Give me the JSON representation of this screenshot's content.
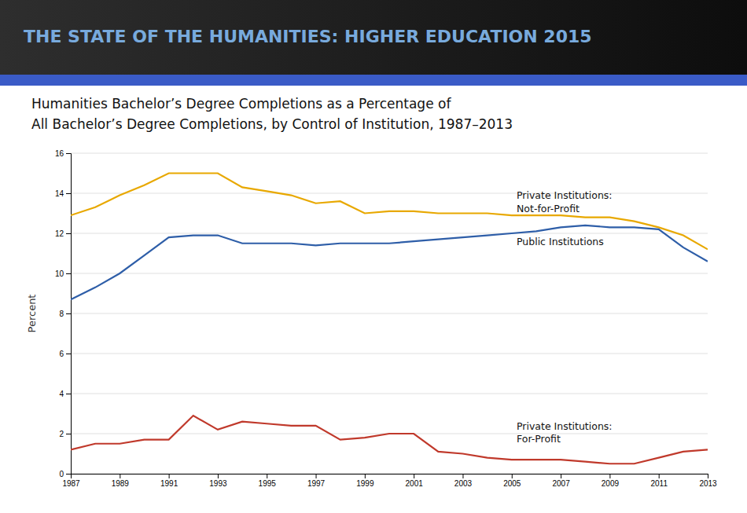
{
  "chart_data": {
    "type": "line",
    "header": "THE STATE OF THE HUMANITIES: HIGHER EDUCATION 2015",
    "title": "Humanities Bachelor’s Degree Completions as a Percentage of\nAll Bachelor’s Degree Completions, by Control of Institution, 1987–2013",
    "ylabel": "Percent",
    "x": [
      1987,
      1988,
      1989,
      1990,
      1991,
      1992,
      1993,
      1994,
      1995,
      1996,
      1997,
      1998,
      1999,
      2000,
      2001,
      2002,
      2003,
      2004,
      2005,
      2006,
      2007,
      2008,
      2009,
      2010,
      2011,
      2012,
      2013
    ],
    "series": [
      {
        "color": "#E8A800",
        "values": [
          12.9,
          13.3,
          13.9,
          14.4,
          15.0,
          15.0,
          15.0,
          14.3,
          14.1,
          13.9,
          13.5,
          13.6,
          13.0,
          13.1,
          13.1,
          13.0,
          13.0,
          13.0,
          12.9,
          12.9,
          12.9,
          12.8,
          12.8,
          12.6,
          12.3,
          11.9,
          11.2
        ]
      },
      {
        "color": "#2E5EA8",
        "values": [
          8.7,
          9.3,
          10.0,
          10.9,
          11.8,
          11.9,
          11.9,
          11.5,
          11.5,
          11.5,
          11.4,
          11.5,
          11.5,
          11.5,
          11.6,
          11.7,
          11.8,
          11.9,
          12.0,
          12.1,
          12.3,
          12.4,
          12.3,
          12.3,
          12.2,
          11.3,
          10.6
        ]
      },
      {
        "color": "#C0392B",
        "values": [
          1.2,
          1.5,
          1.5,
          1.7,
          1.7,
          2.9,
          2.2,
          2.6,
          2.5,
          2.4,
          2.4,
          1.7,
          1.8,
          2.0,
          2.0,
          1.1,
          1.0,
          0.8,
          0.7,
          0.7,
          0.7,
          0.6,
          0.5,
          0.5,
          0.8,
          1.1,
          1.2
        ]
      }
    ],
    "xlim": [
      1987,
      2013
    ],
    "xticks": [
      1987,
      1989,
      1991,
      1993,
      1995,
      1997,
      1999,
      2001,
      2003,
      2005,
      2007,
      2009,
      2011,
      2013
    ],
    "ylim": [
      0,
      16
    ],
    "yticks": [
      0,
      2,
      4,
      6,
      8,
      10,
      12,
      14,
      16
    ],
    "grid": true,
    "annotations": [
      {
        "text": "Private Institutions:\nNot-for-Profit",
        "x": 2005.2,
        "y": 13.55
      },
      {
        "text": "Public Institutions",
        "x": 2005.2,
        "y": 11.55
      },
      {
        "text": "Private Institutions:\nFor-Profit",
        "x": 2005.2,
        "y": 2.05
      }
    ]
  }
}
